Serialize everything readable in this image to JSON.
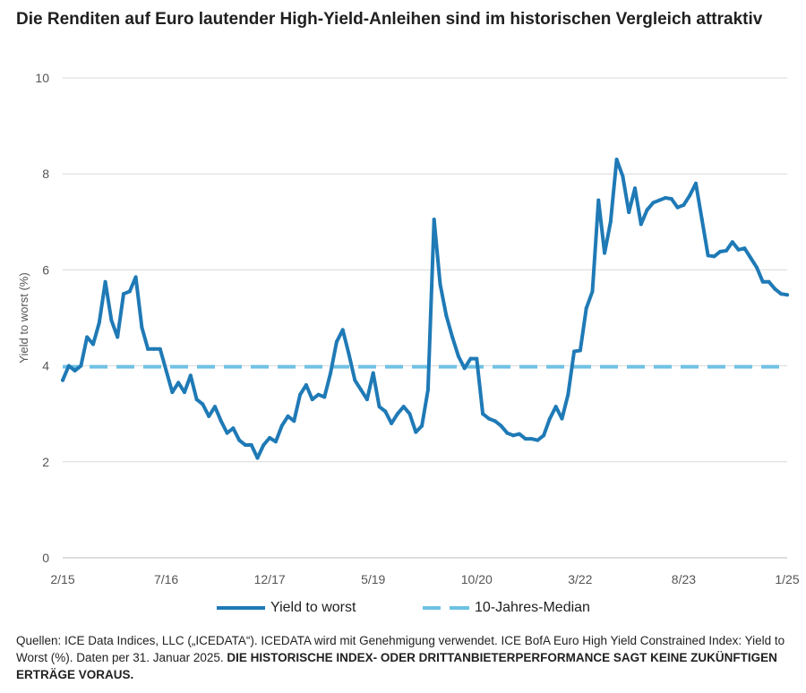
{
  "title": "Die Renditen auf Euro lautender High-Yield-Anleihen sind im historischen Vergleich attraktiv",
  "colors": {
    "yield_line": "#1f7ab6",
    "median_line": "#6ec1e4",
    "grid": "#d9d9d9",
    "axis_text": "#555555"
  },
  "legend": {
    "yield_label": "Yield to worst",
    "median_label": "10-Jahres-Median"
  },
  "footnote": {
    "text": "Quellen: ICE Data Indices, LLC („ICEDATA“). ICEDATA wird mit Genehmigung verwendet. ICE BofA Euro High Yield Constrained Index: Yield to Worst (%). Daten per 31. Januar 2025. ",
    "strong": "DIE HISTORISCHE INDEX- ODER DRITTANBIETERPERFORMANCE SAGT KEINE ZUKÜNFTIGEN ERTRÄGE VORAUS."
  },
  "chart_data": {
    "type": "line",
    "ylabel": "Yield to worst (%)",
    "xlabel": "",
    "ylim": [
      0,
      10
    ],
    "yticks": [
      0,
      2,
      4,
      6,
      8,
      10
    ],
    "xlim": [
      "2/15",
      "1/25"
    ],
    "xticks": [
      "2/15",
      "7/16",
      "12/17",
      "5/19",
      "10/20",
      "3/22",
      "8/23",
      "1/25"
    ],
    "grid": true,
    "legend_position": "bottom",
    "series": [
      {
        "name": "Yield to worst",
        "style": "solid",
        "x": [
          "2/15",
          "3/15",
          "4/15",
          "5/15",
          "6/15",
          "7/15",
          "8/15",
          "9/15",
          "10/15",
          "11/15",
          "12/15",
          "1/16",
          "2/16",
          "3/16",
          "4/16",
          "5/16",
          "6/16",
          "7/16",
          "8/16",
          "9/16",
          "10/16",
          "11/16",
          "12/16",
          "1/17",
          "2/17",
          "3/17",
          "4/17",
          "5/17",
          "6/17",
          "7/17",
          "8/17",
          "9/17",
          "10/17",
          "11/17",
          "12/17",
          "1/18",
          "2/18",
          "3/18",
          "4/18",
          "5/18",
          "6/18",
          "7/18",
          "8/18",
          "9/18",
          "10/18",
          "11/18",
          "12/18",
          "1/19",
          "2/19",
          "3/19",
          "4/19",
          "5/19",
          "6/19",
          "7/19",
          "8/19",
          "9/19",
          "10/19",
          "11/19",
          "12/19",
          "1/20",
          "2/20",
          "3/20",
          "4/20",
          "5/20",
          "6/20",
          "7/20",
          "8/20",
          "9/20",
          "10/20",
          "11/20",
          "12/20",
          "1/21",
          "2/21",
          "3/21",
          "4/21",
          "5/21",
          "6/21",
          "7/21",
          "8/21",
          "9/21",
          "10/21",
          "11/21",
          "12/21",
          "1/22",
          "2/22",
          "3/22",
          "4/22",
          "5/22",
          "6/22",
          "7/22",
          "8/22",
          "9/22",
          "10/22",
          "11/22",
          "12/22",
          "1/23",
          "2/23",
          "3/23",
          "4/23",
          "5/23",
          "6/23",
          "7/23",
          "8/23",
          "9/23",
          "10/23",
          "11/23",
          "12/23",
          "1/24",
          "2/24",
          "3/24",
          "4/24",
          "5/24",
          "6/24",
          "7/24",
          "8/24",
          "9/24",
          "10/24",
          "11/24",
          "12/24",
          "1/25"
        ],
        "values": [
          3.7,
          4.0,
          3.9,
          4.0,
          4.6,
          4.45,
          4.9,
          5.75,
          4.95,
          4.6,
          5.5,
          5.55,
          5.85,
          4.8,
          4.35,
          4.35,
          4.35,
          3.9,
          3.45,
          3.65,
          3.45,
          3.8,
          3.3,
          3.2,
          2.95,
          3.15,
          2.85,
          2.6,
          2.7,
          2.45,
          2.35,
          2.35,
          2.08,
          2.35,
          2.5,
          2.42,
          2.75,
          2.95,
          2.85,
          3.4,
          3.6,
          3.3,
          3.4,
          3.35,
          3.85,
          4.5,
          4.75,
          4.25,
          3.7,
          3.5,
          3.3,
          3.85,
          3.15,
          3.05,
          2.8,
          3.0,
          3.15,
          3.0,
          2.62,
          2.75,
          3.5,
          7.05,
          5.7,
          5.05,
          4.6,
          4.2,
          3.95,
          4.15,
          4.15,
          3.0,
          2.9,
          2.85,
          2.75,
          2.6,
          2.55,
          2.58,
          2.48,
          2.48,
          2.45,
          2.55,
          2.9,
          3.15,
          2.9,
          3.4,
          4.3,
          4.32,
          5.2,
          5.55,
          7.45,
          6.35,
          7.0,
          8.3,
          7.95,
          7.2,
          7.7,
          6.95,
          7.25,
          7.4,
          7.45,
          7.5,
          7.48,
          7.3,
          7.35,
          7.55,
          7.8,
          7.05,
          6.3,
          6.28,
          6.38,
          6.4,
          6.58,
          6.42,
          6.45,
          6.25,
          6.05,
          5.75,
          5.75,
          5.6,
          5.5,
          5.48
        ]
      },
      {
        "name": "10-Jahres-Median",
        "style": "dashed",
        "constant": 3.98
      }
    ]
  }
}
